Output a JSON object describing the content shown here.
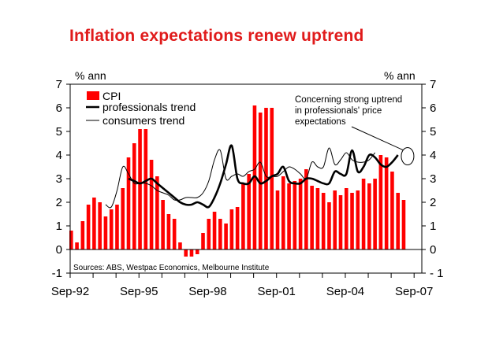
{
  "chart_data": {
    "type": "bar",
    "title": "Inflation expectations renew uptrend",
    "ylabel_left": "% ann",
    "ylabel_right": "% ann",
    "ylim": [
      -1,
      7
    ],
    "yticks": [
      -1,
      0,
      1,
      2,
      3,
      4,
      5,
      6,
      7
    ],
    "xtick_labels": [
      "Sep-92",
      "Sep-95",
      "Sep-98",
      "Sep-01",
      "Sep-04",
      "Sep-07"
    ],
    "x_start": "Sep-92",
    "x_end": "Sep-07",
    "frequency": "quarterly",
    "legend": [
      {
        "name": "CPI",
        "type": "bar",
        "color": "#ff0000"
      },
      {
        "name": "professionals trend",
        "type": "line",
        "color": "#000000",
        "weight": "thick"
      },
      {
        "name": "consumers trend",
        "type": "line",
        "color": "#000000",
        "weight": "thin"
      }
    ],
    "series": [
      {
        "name": "CPI",
        "start_index": 0,
        "values": [
          0.8,
          0.3,
          1.2,
          1.9,
          2.2,
          2.0,
          1.4,
          1.7,
          1.9,
          2.6,
          3.9,
          4.5,
          5.1,
          5.1,
          3.8,
          3.1,
          2.1,
          1.5,
          1.3,
          0.3,
          -0.3,
          -0.3,
          -0.2,
          0.7,
          1.3,
          1.6,
          1.3,
          1.1,
          1.7,
          1.8,
          2.8,
          3.2,
          6.1,
          5.8,
          6.0,
          6.0,
          2.5,
          3.1,
          2.8,
          2.9,
          3.0,
          3.4,
          2.7,
          2.6,
          2.4,
          2.0,
          2.5,
          2.3,
          2.6,
          2.4,
          2.5,
          3.0,
          2.8,
          3.0,
          4.0,
          3.9,
          3.3,
          2.4,
          2.1
        ]
      },
      {
        "name": "professionals trend",
        "start_index": 10,
        "values": [
          3.0,
          2.9,
          2.8,
          2.9,
          3.0,
          2.8,
          2.6,
          2.4,
          2.2,
          2.0,
          1.9,
          1.9,
          2.0,
          1.9,
          1.8,
          2.2,
          2.8,
          3.6,
          4.4,
          3.0,
          2.8,
          2.8,
          3.1,
          2.8,
          2.9,
          3.1,
          3.2,
          3.5,
          2.9,
          2.8,
          2.8,
          3.0,
          3.0,
          2.9,
          2.8,
          2.8,
          3.3,
          3.2,
          3.2,
          4.2,
          3.3,
          3.5,
          4.0,
          3.9,
          3.6,
          3.5,
          3.7,
          4.0
        ]
      },
      {
        "name": "consumers trend",
        "start_index": 6,
        "values": [
          1.9,
          1.8,
          2.5,
          3.5,
          3.2,
          2.8,
          2.8,
          2.8,
          2.7,
          2.5,
          2.4,
          2.3,
          2.1,
          2.1,
          2.2,
          2.2,
          2.2,
          2.4,
          2.9,
          3.8,
          4.2,
          3.0,
          3.1,
          3.2,
          3.1,
          3.3,
          3.4,
          3.7,
          3.1,
          3.1,
          3.1,
          3.3,
          3.5,
          3.4,
          3.2,
          3.0,
          3.7,
          3.5,
          3.5,
          4.3,
          3.6,
          3.8,
          4.1,
          3.8,
          3.7,
          3.7,
          3.8,
          4.1
        ]
      }
    ],
    "annotation": {
      "lines": [
        "Concerning strong uptrend",
        "in professionals' price",
        "expectations"
      ],
      "target_index": 59,
      "target_value": 3.95
    },
    "source": "Sources: ABS, Westpac Economics, Melbourne Institute",
    "grid": false
  }
}
